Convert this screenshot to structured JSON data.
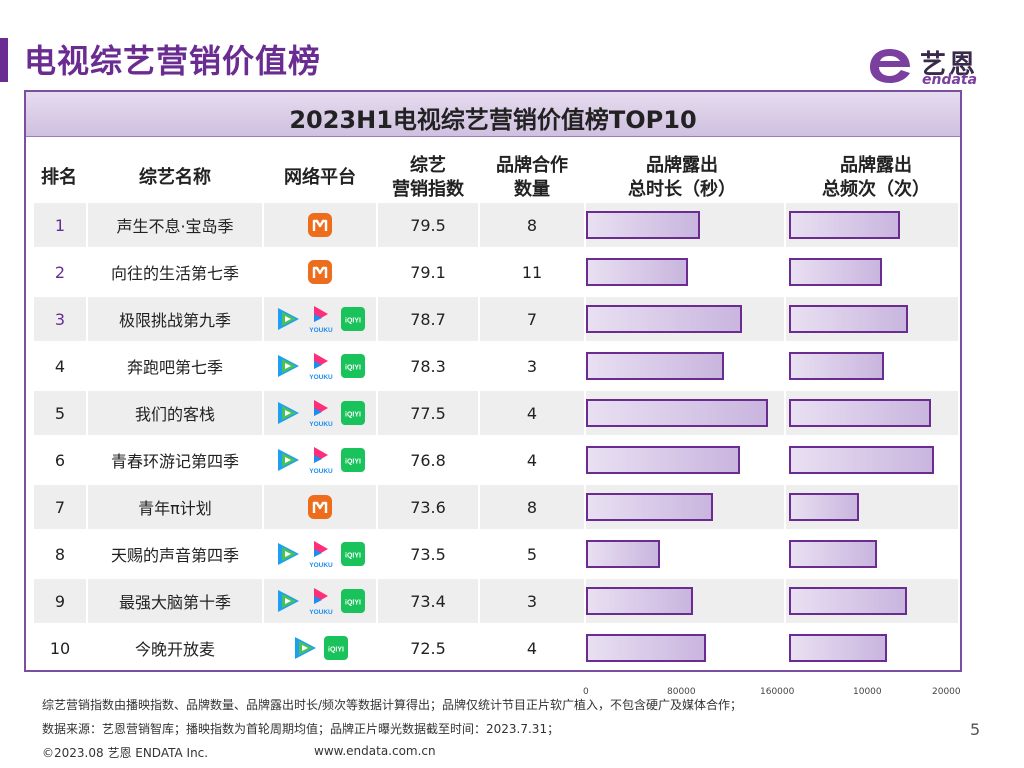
{
  "page_title": "电视综艺营销价值榜",
  "logo": {
    "cn": "艺恩",
    "en": "endata"
  },
  "chart_title": "2023H1电视综艺营销价值榜TOP10",
  "headers": {
    "rank": "排名",
    "name": "综艺名称",
    "platform": "网络平台",
    "index_l1": "综艺",
    "index_l2": "营销指数",
    "brands_l1": "品牌合作",
    "brands_l2": "数量",
    "duration_l1": "品牌露出",
    "duration_l2": "总时长（秒）",
    "freq_l1": "品牌露出",
    "freq_l2": "总频次（次）"
  },
  "icon_labels": {
    "youku": "YOUKU",
    "iqiyi": "iQIYI"
  },
  "colors": {
    "accent": "#6a2c91",
    "mango": "#ee6d1d",
    "tencent_blue": "#1ea0f0",
    "tencent_green": "#49c157",
    "youku_blue": "#1d8df0",
    "youku_pink": "#ff2d7a",
    "iqiyi": "#19c25a"
  },
  "chart_data": {
    "type": "table",
    "title": "2023H1电视综艺营销价值榜TOP10",
    "columns": [
      "排名",
      "综艺名称",
      "网络平台",
      "综艺营销指数",
      "品牌合作数量",
      "品牌露出总时长（秒）",
      "品牌露出总频次（次）"
    ],
    "rows": [
      {
        "rank": "1",
        "name": "声生不息·宝岛季",
        "platforms": [
          "mango"
        ],
        "index": "79.5",
        "brands": "8",
        "duration": 95000,
        "frequency": 14000
      },
      {
        "rank": "2",
        "name": "向往的生活第七季",
        "platforms": [
          "mango"
        ],
        "index": "79.1",
        "brands": "11",
        "duration": 85000,
        "frequency": 11800
      },
      {
        "rank": "3",
        "name": "极限挑战第九季",
        "platforms": [
          "tencent",
          "youku",
          "iqiyi"
        ],
        "index": "78.7",
        "brands": "7",
        "duration": 130000,
        "frequency": 15000
      },
      {
        "rank": "4",
        "name": "奔跑吧第七季",
        "platforms": [
          "tencent",
          "youku",
          "iqiyi"
        ],
        "index": "78.3",
        "brands": "3",
        "duration": 115000,
        "frequency": 12000
      },
      {
        "rank": "5",
        "name": "我们的客栈",
        "platforms": [
          "tencent",
          "youku",
          "iqiyi"
        ],
        "index": "77.5",
        "brands": "4",
        "duration": 152000,
        "frequency": 18000
      },
      {
        "rank": "6",
        "name": "青春环游记第四季",
        "platforms": [
          "tencent",
          "youku",
          "iqiyi"
        ],
        "index": "76.8",
        "brands": "4",
        "duration": 128000,
        "frequency": 18300
      },
      {
        "rank": "7",
        "name": "青年π计划",
        "platforms": [
          "mango"
        ],
        "index": "73.6",
        "brands": "8",
        "duration": 106000,
        "frequency": 8800
      },
      {
        "rank": "8",
        "name": "天赐的声音第四季",
        "platforms": [
          "tencent",
          "youku",
          "iqiyi"
        ],
        "index": "73.5",
        "brands": "5",
        "duration": 62000,
        "frequency": 11100
      },
      {
        "rank": "9",
        "name": "最强大脑第十季",
        "platforms": [
          "tencent",
          "youku",
          "iqiyi"
        ],
        "index": "73.4",
        "brands": "3",
        "duration": 89000,
        "frequency": 14900
      },
      {
        "rank": "10",
        "name": "今晚开放麦",
        "platforms": [
          "tencent",
          "iqiyi"
        ],
        "index": "72.5",
        "brands": "4",
        "duration": 100000,
        "frequency": 12400
      }
    ],
    "duration_axis": {
      "ticks": [
        "0",
        "80000",
        "160000"
      ],
      "range": [
        0,
        160000
      ]
    },
    "frequency_axis": {
      "ticks": [
        "10000",
        "20000"
      ],
      "range": [
        0,
        20000
      ]
    }
  },
  "footnotes": [
    "综艺营销指数由播映指数、品牌数量、品牌露出时长/频次等数据计算得出；品牌仅统计节目正片软广植入，不包含硬广及媒体合作；",
    "数据来源：艺恩营销智库；播映指数为首轮周期均值；品牌正片曝光数据截至时间：2023.7.31；"
  ],
  "footer": {
    "copyright": "©2023.08 艺恩 ENDATA Inc.",
    "website": "www.endata.com.cn"
  },
  "page_number": "5"
}
